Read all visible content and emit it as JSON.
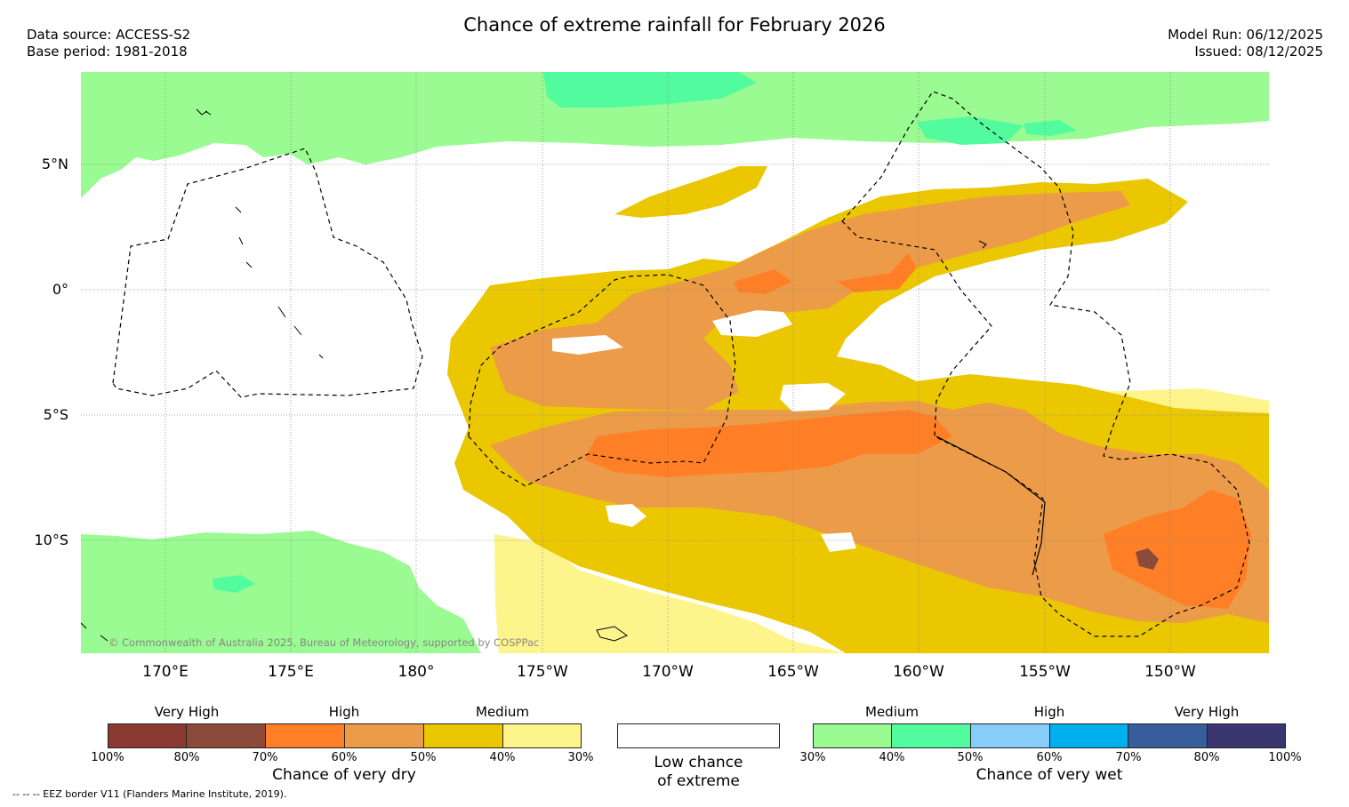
{
  "header": {
    "title": "Chance of extreme rainfall for February 2026",
    "data_source": "Data source: ACCESS-S2",
    "base_period": "Base period: 1981-2018",
    "model_run": "Model Run: 06/12/2025",
    "issued": "Issued: 08/12/2025"
  },
  "map": {
    "lat_labels": [
      "5°N",
      "0°",
      "5°S",
      "10°S"
    ],
    "lon_labels": [
      "170°E",
      "175°E",
      "180°",
      "175°W",
      "170°W",
      "165°W",
      "160°W",
      "155°W",
      "150°W"
    ],
    "copyright": "© Commonwealth of Australia 2025, Bureau of Meteorology, supported by COSPPac"
  },
  "legend": {
    "dry": {
      "categories": [
        "Very High",
        "High",
        "Medium"
      ],
      "ticks": [
        "100%",
        "80%",
        "70%",
        "60%",
        "50%",
        "40%",
        "30%"
      ],
      "colors": [
        "#8b3a32",
        "#8b4a3a",
        "#ff7f27",
        "#ec9b48",
        "#eac700",
        "#fdf58c"
      ],
      "caption": "Chance of very dry"
    },
    "neutral": {
      "caption_line1": "Low chance",
      "caption_line2": "of extreme"
    },
    "wet": {
      "categories": [
        "Medium",
        "High",
        "Very High"
      ],
      "ticks": [
        "30%",
        "40%",
        "50%",
        "60%",
        "70%",
        "80%",
        "100%"
      ],
      "colors": [
        "#99fb91",
        "#52fb9e",
        "#87cdfa",
        "#00b0ee",
        "#355e9b",
        "#3a3670"
      ],
      "caption": "Chance of very wet"
    }
  },
  "footnote": "--  --  -- EEZ border V11 (Flanders Marine Institute, 2019)."
}
